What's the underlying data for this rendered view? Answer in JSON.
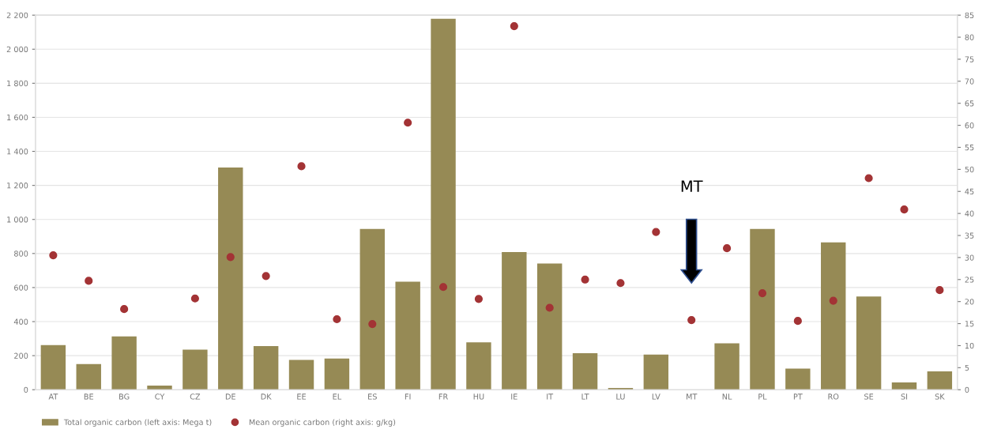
{
  "chart_data": {
    "type": "bar",
    "categories": [
      "AT",
      "BE",
      "BG",
      "CY",
      "CZ",
      "DE",
      "DK",
      "EE",
      "EL",
      "ES",
      "FI",
      "FR",
      "HU",
      "IE",
      "IT",
      "LT",
      "LU",
      "LV",
      "MT",
      "NL",
      "PL",
      "PT",
      "RO",
      "SE",
      "SI",
      "SK"
    ],
    "series": [
      {
        "name": "Total organic carbon (left axis: Mega t)",
        "color": "#968a55",
        "values": [
          262,
          151,
          313,
          24,
          235,
          1305,
          256,
          175,
          183,
          944,
          635,
          2179,
          278,
          808,
          741,
          214,
          10,
          206,
          null,
          273,
          944,
          124,
          865,
          548,
          43,
          108
        ]
      },
      {
        "name": "Mean organic carbon (right axis: g/kg)",
        "type": "scatter",
        "axis": "y2",
        "color": "#a33335",
        "values": [
          30.5,
          24.7,
          18.3,
          null,
          20.7,
          30.1,
          25.8,
          50.7,
          16.0,
          14.9,
          60.6,
          23.3,
          20.6,
          82.5,
          18.6,
          25.0,
          24.2,
          35.8,
          15.8,
          32.1,
          21.9,
          15.6,
          20.2,
          48.0,
          40.9,
          22.6
        ]
      }
    ],
    "ylim": [
      0,
      2200
    ],
    "yticks": [
      0,
      200,
      400,
      600,
      800,
      {
        "value": 1000,
        "label": "1 000"
      },
      {
        "value": 1200,
        "label": "1 200"
      },
      {
        "value": 1400,
        "label": "1 400"
      },
      {
        "value": 1600,
        "label": "1 600"
      },
      {
        "value": 1800,
        "label": "1 800"
      },
      {
        "value": 2000,
        "label": "2 000"
      },
      {
        "value": 2200,
        "label": "2 200"
      }
    ],
    "y2lim": [
      0,
      85
    ],
    "y2ticks": [
      0,
      5,
      10,
      15,
      20,
      25,
      30,
      35,
      40,
      45,
      50,
      55,
      60,
      65,
      70,
      75,
      80,
      85
    ],
    "grid": "y",
    "legend": "bottom left",
    "marker": "circle",
    "annotations": [
      "MT"
    ]
  }
}
